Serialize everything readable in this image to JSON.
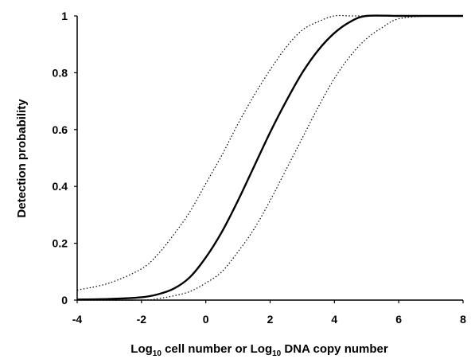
{
  "chart_data": {
    "type": "line",
    "xlabel_parts": [
      "Log",
      "10",
      " cell number or Log",
      "10",
      " DNA copy number"
    ],
    "ylabel": "Detection probability",
    "xlim": [
      -4,
      8
    ],
    "ylim": [
      0,
      1
    ],
    "xticks": [
      -4,
      -2,
      0,
      2,
      4,
      6,
      8
    ],
    "yticks": [
      0,
      0.2,
      0.4,
      0.6,
      0.8,
      1
    ],
    "ytick_labels": [
      "0",
      "0.2",
      "0.4",
      "0.6",
      "0.8",
      "1"
    ],
    "grid": false,
    "series": [
      {
        "style": "solid",
        "x": [
          -4,
          -3,
          -2,
          -1.5,
          -1,
          -0.5,
          0,
          0.5,
          1,
          1.5,
          2,
          2.5,
          3,
          3.5,
          4,
          4.5,
          5,
          6,
          7,
          8
        ],
        "y": [
          0.002,
          0.004,
          0.01,
          0.02,
          0.04,
          0.08,
          0.15,
          0.24,
          0.35,
          0.47,
          0.59,
          0.7,
          0.8,
          0.88,
          0.94,
          0.98,
          1.0,
          1.0,
          1.0,
          1.0
        ]
      },
      {
        "style": "dotted",
        "x": [
          -4,
          -3,
          -2,
          -1.5,
          -1,
          -0.5,
          0,
          0.5,
          1,
          1.5,
          2,
          2.5,
          3,
          3.5,
          4,
          4.5,
          5,
          6,
          7,
          8
        ],
        "y": [
          0.035,
          0.06,
          0.11,
          0.16,
          0.23,
          0.31,
          0.41,
          0.51,
          0.62,
          0.72,
          0.81,
          0.89,
          0.95,
          0.98,
          1.0,
          1.0,
          1.0,
          1.0,
          1.0,
          1.0
        ]
      },
      {
        "style": "dotted",
        "x": [
          -4,
          -2,
          -1.5,
          -1,
          -0.5,
          0,
          0.5,
          1,
          1.5,
          2,
          2.5,
          3,
          3.5,
          4,
          4.5,
          5,
          5.5,
          6,
          7,
          8
        ],
        "y": [
          0.0,
          0.0,
          0.005,
          0.015,
          0.03,
          0.06,
          0.1,
          0.17,
          0.25,
          0.35,
          0.46,
          0.57,
          0.68,
          0.78,
          0.86,
          0.92,
          0.96,
          0.99,
          1.0,
          1.0
        ]
      }
    ]
  }
}
